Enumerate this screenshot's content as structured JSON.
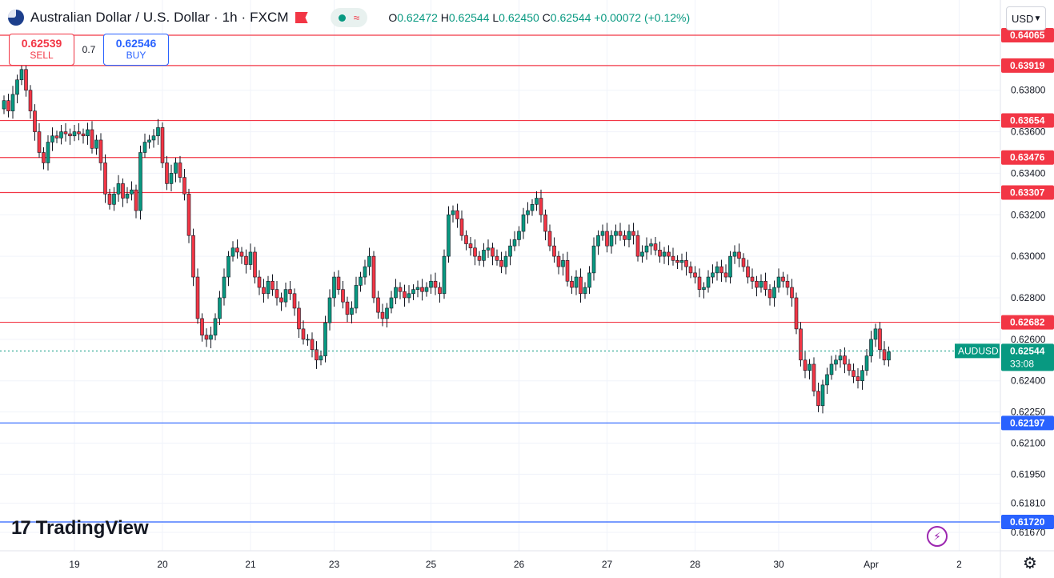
{
  "header": {
    "title": "Australian Dollar / U.S. Dollar · 1h · FXCM",
    "ohlc": [
      {
        "label": "O",
        "value": "0.62472"
      },
      {
        "label": "H",
        "value": "0.62544"
      },
      {
        "label": "L",
        "value": "0.62450"
      },
      {
        "label": "C",
        "value": "0.62544"
      }
    ],
    "change": "+0.00072 (+0.12%)"
  },
  "trade": {
    "sell_price": "0.62539",
    "sell_label": "SELL",
    "spread": "0.7",
    "buy_price": "0.62546",
    "buy_label": "BUY"
  },
  "currency": "USD",
  "branding": {
    "logo_text": "TradingView",
    "logo_mark": "17"
  },
  "colors": {
    "up": "#089981",
    "down": "#f23645",
    "resistance": "#f23645",
    "support": "#2962ff",
    "grid": "#f0f3fa",
    "last_price": "#089981"
  },
  "chart_data": {
    "type": "candlestick",
    "symbol": "AUDUSD",
    "interval": "1h",
    "ylim": [
      0.616,
      0.64065
    ],
    "y_ticks": [
      "0.64065",
      "0.63800",
      "0.63600",
      "0.63400",
      "0.63200",
      "0.63000",
      "0.62800",
      "0.62600",
      "0.62400",
      "0.62250",
      "0.62100",
      "0.61950",
      "0.61810",
      "0.61670"
    ],
    "x_ticks": [
      {
        "label": "19",
        "bar": 16
      },
      {
        "label": "20",
        "bar": 36
      },
      {
        "label": "21",
        "bar": 56
      },
      {
        "label": "23",
        "bar": 75
      },
      {
        "label": "25",
        "bar": 97
      },
      {
        "label": "26",
        "bar": 117
      },
      {
        "label": "27",
        "bar": 137
      },
      {
        "label": "28",
        "bar": 157
      },
      {
        "label": "30",
        "bar": 176
      },
      {
        "label": "Apr",
        "bar": 197
      },
      {
        "label": "2",
        "bar": 217
      }
    ],
    "horizontal_levels": [
      {
        "price": 0.64065,
        "label": "0.64065",
        "kind": "resistance"
      },
      {
        "price": 0.63919,
        "label": "0.63919",
        "kind": "resistance"
      },
      {
        "price": 0.63654,
        "label": "0.63654",
        "kind": "resistance"
      },
      {
        "price": 0.63476,
        "label": "0.63476",
        "kind": "resistance"
      },
      {
        "price": 0.63307,
        "label": "0.63307",
        "kind": "resistance"
      },
      {
        "price": 0.62682,
        "label": "0.62682",
        "kind": "resistance"
      },
      {
        "price": 0.62197,
        "label": "0.62197",
        "kind": "support"
      },
      {
        "price": 0.6172,
        "label": "0.61720",
        "kind": "support"
      }
    ],
    "last_price": {
      "symbol": "AUDUSD",
      "price": "0.62544",
      "countdown": "33:08",
      "value": 0.62544
    },
    "closes": [
      0.6375,
      0.637,
      0.6378,
      0.6385,
      0.639,
      0.638,
      0.637,
      0.636,
      0.635,
      0.6345,
      0.6355,
      0.6358,
      0.6357,
      0.636,
      0.6359,
      0.6358,
      0.636,
      0.6359,
      0.6358,
      0.6361,
      0.6352,
      0.6356,
      0.6345,
      0.633,
      0.6325,
      0.633,
      0.6335,
      0.6328,
      0.633,
      0.6332,
      0.6322,
      0.635,
      0.6355,
      0.6356,
      0.6358,
      0.6362,
      0.6345,
      0.6335,
      0.634,
      0.6345,
      0.6338,
      0.633,
      0.631,
      0.629,
      0.627,
      0.6262,
      0.626,
      0.6262,
      0.627,
      0.628,
      0.629,
      0.63,
      0.6304,
      0.6302,
      0.63,
      0.6296,
      0.6302,
      0.629,
      0.6285,
      0.6282,
      0.6288,
      0.6284,
      0.628,
      0.6278,
      0.6284,
      0.6282,
      0.6275,
      0.6265,
      0.626,
      0.626,
      0.6255,
      0.625,
      0.6252,
      0.6268,
      0.628,
      0.629,
      0.6284,
      0.6278,
      0.6272,
      0.6275,
      0.6286,
      0.629,
      0.6295,
      0.63,
      0.628,
      0.6273,
      0.627,
      0.6275,
      0.628,
      0.6285,
      0.6283,
      0.628,
      0.6282,
      0.6284,
      0.6285,
      0.6283,
      0.6285,
      0.6288,
      0.6285,
      0.6282,
      0.63,
      0.632,
      0.6322,
      0.6318,
      0.631,
      0.6306,
      0.6304,
      0.63,
      0.6298,
      0.6303,
      0.6304,
      0.63,
      0.6298,
      0.6295,
      0.63,
      0.6305,
      0.6308,
      0.6312,
      0.632,
      0.6322,
      0.6325,
      0.6328,
      0.632,
      0.6312,
      0.6305,
      0.63,
      0.6295,
      0.6298,
      0.6288,
      0.6285,
      0.629,
      0.6282,
      0.6285,
      0.6292,
      0.6305,
      0.631,
      0.6312,
      0.6305,
      0.631,
      0.6312,
      0.631,
      0.6308,
      0.6312,
      0.631,
      0.63,
      0.6302,
      0.6305,
      0.6306,
      0.6303,
      0.63,
      0.6302,
      0.63,
      0.6298,
      0.6297,
      0.6298,
      0.6295,
      0.6292,
      0.629,
      0.6284,
      0.6285,
      0.629,
      0.6292,
      0.6295,
      0.6292,
      0.629,
      0.63,
      0.6302,
      0.6299,
      0.6295,
      0.629,
      0.6288,
      0.6285,
      0.6288,
      0.6284,
      0.628,
      0.6285,
      0.629,
      0.6288,
      0.6285,
      0.628,
      0.6265,
      0.625,
      0.6245,
      0.6248,
      0.6235,
      0.6228,
      0.6238,
      0.6243,
      0.6248,
      0.625,
      0.6252,
      0.6248,
      0.6245,
      0.6242,
      0.624,
      0.6245,
      0.6252,
      0.626,
      0.6265,
      0.6255,
      0.625,
      0.6254
    ],
    "summary": {
      "first_open": 0.637,
      "last_close": 0.62544,
      "period_high": 0.6392,
      "period_low": 0.6219
    }
  }
}
